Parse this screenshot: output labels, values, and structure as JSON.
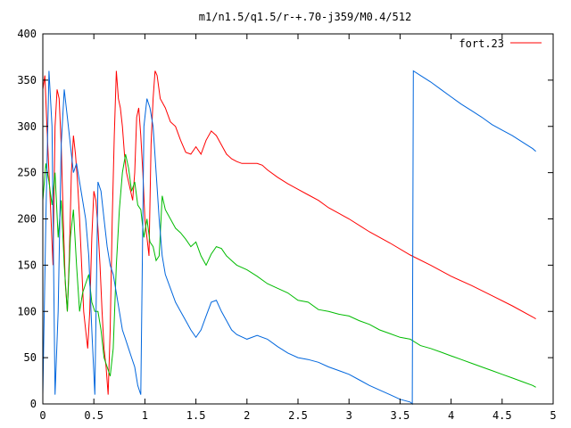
{
  "chart_data": {
    "type": "line",
    "title": "m1/n1.5/q1.5/r-+.70-j359/M0.4/512",
    "xlabel": "",
    "ylabel": "",
    "xlim": [
      0,
      5
    ],
    "ylim": [
      0,
      400
    ],
    "x_ticks": [
      "0",
      "0.5",
      "1",
      "1.5",
      "2",
      "2.5",
      "3",
      "3.5",
      "4",
      "4.5",
      "5"
    ],
    "y_ticks": [
      "0",
      "50",
      "100",
      "150",
      "200",
      "250",
      "300",
      "350",
      "400"
    ],
    "legend_position": "top-right",
    "grid": false,
    "series": [
      {
        "name": "fort.23",
        "color": "#ff0000",
        "x": [
          0,
          0.02,
          0.04,
          0.06,
          0.08,
          0.1,
          0.12,
          0.14,
          0.16,
          0.18,
          0.2,
          0.22,
          0.24,
          0.26,
          0.28,
          0.3,
          0.32,
          0.34,
          0.36,
          0.38,
          0.4,
          0.42,
          0.44,
          0.46,
          0.48,
          0.5,
          0.52,
          0.54,
          0.56,
          0.58,
          0.6,
          0.62,
          0.64,
          0.66,
          0.68,
          0.7,
          0.72,
          0.74,
          0.76,
          0.78,
          0.8,
          0.82,
          0.84,
          0.86,
          0.88,
          0.9,
          0.92,
          0.94,
          0.96,
          0.98,
          1.0,
          1.02,
          1.04,
          1.06,
          1.08,
          1.1,
          1.12,
          1.15,
          1.2,
          1.25,
          1.3,
          1.35,
          1.4,
          1.45,
          1.5,
          1.55,
          1.6,
          1.65,
          1.7,
          1.75,
          1.8,
          1.85,
          1.9,
          1.95,
          2.0,
          2.05,
          2.1,
          2.15,
          2.2,
          2.3,
          2.4,
          2.5,
          2.6,
          2.7,
          2.8,
          3.0,
          3.2,
          3.4,
          3.6,
          3.8,
          4.0,
          4.2,
          4.4,
          4.6,
          4.8,
          4.83
        ],
        "y": [
          340,
          355,
          300,
          250,
          200,
          150,
          300,
          340,
          330,
          280,
          200,
          130,
          100,
          160,
          250,
          290,
          270,
          240,
          200,
          150,
          100,
          80,
          60,
          100,
          180,
          230,
          220,
          190,
          150,
          100,
          60,
          40,
          10,
          80,
          200,
          290,
          360,
          330,
          320,
          300,
          270,
          250,
          240,
          230,
          220,
          250,
          310,
          320,
          290,
          250,
          200,
          180,
          160,
          280,
          330,
          360,
          355,
          330,
          320,
          305,
          300,
          285,
          272,
          270,
          278,
          270,
          285,
          295,
          290,
          280,
          270,
          265,
          262,
          260,
          260,
          260,
          260,
          258,
          253,
          245,
          238,
          232,
          226,
          220,
          212,
          200,
          186,
          174,
          161,
          150,
          138,
          128,
          117,
          106,
          94,
          92
        ]
      },
      {
        "name": "",
        "color": "#00bb00",
        "x": [
          0,
          0.03,
          0.06,
          0.09,
          0.12,
          0.15,
          0.18,
          0.21,
          0.24,
          0.27,
          0.3,
          0.33,
          0.36,
          0.39,
          0.42,
          0.45,
          0.48,
          0.51,
          0.54,
          0.57,
          0.6,
          0.63,
          0.66,
          0.69,
          0.72,
          0.75,
          0.78,
          0.81,
          0.84,
          0.87,
          0.9,
          0.93,
          0.96,
          0.99,
          1.02,
          1.05,
          1.08,
          1.11,
          1.14,
          1.17,
          1.2,
          1.25,
          1.3,
          1.35,
          1.4,
          1.45,
          1.5,
          1.55,
          1.6,
          1.65,
          1.7,
          1.75,
          1.8,
          1.85,
          1.9,
          2.0,
          2.1,
          2.2,
          2.3,
          2.4,
          2.5,
          2.6,
          2.7,
          2.8,
          2.9,
          3.0,
          3.1,
          3.2,
          3.3,
          3.4,
          3.5,
          3.6,
          3.7,
          3.8,
          3.9,
          4.0,
          4.1,
          4.2,
          4.3,
          4.4,
          4.5,
          4.6,
          4.7,
          4.8,
          4.83
        ],
        "y": [
          220,
          260,
          240,
          215,
          250,
          180,
          220,
          150,
          100,
          180,
          210,
          150,
          100,
          120,
          130,
          140,
          110,
          100,
          100,
          80,
          50,
          40,
          30,
          60,
          150,
          210,
          250,
          270,
          255,
          230,
          240,
          215,
          210,
          180,
          200,
          175,
          170,
          155,
          160,
          225,
          210,
          200,
          190,
          185,
          178,
          170,
          175,
          160,
          150,
          162,
          170,
          168,
          160,
          155,
          150,
          145,
          138,
          130,
          125,
          120,
          112,
          110,
          102,
          100,
          97,
          95,
          90,
          86,
          80,
          76,
          72,
          70,
          63,
          60,
          56,
          52,
          48,
          44,
          40,
          36,
          32,
          28,
          24,
          20,
          18
        ]
      },
      {
        "name": "",
        "color": "#0066dd",
        "x": [
          0,
          0.03,
          0.06,
          0.09,
          0.12,
          0.15,
          0.18,
          0.21,
          0.24,
          0.27,
          0.3,
          0.33,
          0.36,
          0.39,
          0.42,
          0.45,
          0.48,
          0.51,
          0.54,
          0.57,
          0.6,
          0.63,
          0.66,
          0.69,
          0.72,
          0.75,
          0.78,
          0.81,
          0.84,
          0.87,
          0.9,
          0.93,
          0.96,
          0.99,
          1.02,
          1.05,
          1.08,
          1.11,
          1.14,
          1.17,
          1.2,
          1.25,
          1.3,
          1.35,
          1.4,
          1.45,
          1.5,
          1.55,
          1.6,
          1.65,
          1.7,
          1.75,
          1.8,
          1.85,
          1.9,
          2.0,
          2.1,
          2.2,
          2.3,
          2.4,
          2.5,
          2.6,
          2.7,
          2.8,
          2.9,
          3.0,
          3.1,
          3.2,
          3.3,
          3.4,
          3.5,
          3.6,
          3.62,
          3.63,
          3.7,
          3.8,
          3.9,
          4.0,
          4.1,
          4.2,
          4.3,
          4.4,
          4.5,
          4.6,
          4.7,
          4.8,
          4.83
        ],
        "y": [
          10,
          200,
          360,
          300,
          10,
          100,
          280,
          340,
          310,
          280,
          250,
          260,
          240,
          220,
          200,
          160,
          80,
          10,
          240,
          230,
          200,
          170,
          150,
          140,
          120,
          100,
          80,
          70,
          60,
          50,
          40,
          20,
          10,
          300,
          330,
          320,
          300,
          250,
          200,
          160,
          140,
          125,
          110,
          100,
          90,
          80,
          72,
          80,
          95,
          110,
          112,
          100,
          90,
          80,
          75,
          70,
          74,
          70,
          62,
          55,
          50,
          48,
          45,
          40,
          36,
          32,
          26,
          20,
          15,
          10,
          5,
          2,
          0,
          360,
          355,
          348,
          340,
          332,
          324,
          317,
          310,
          302,
          296,
          290,
          283,
          276,
          273
        ]
      }
    ]
  }
}
